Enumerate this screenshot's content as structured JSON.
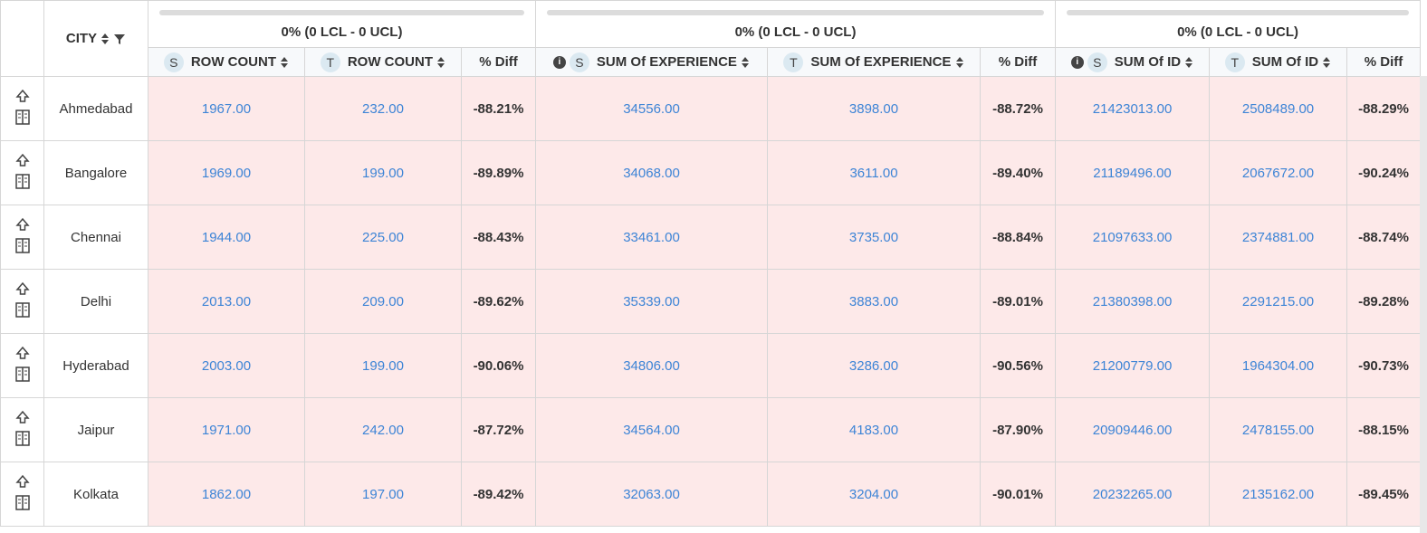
{
  "header": {
    "city": "CITY",
    "groups": [
      "0% (0 LCL - 0 UCL)",
      "0% (0 LCL - 0 UCL)",
      "0% (0 LCL - 0 UCL)"
    ],
    "columns": [
      {
        "badge": "S",
        "label": "ROW COUNT"
      },
      {
        "badge": "T",
        "label": "ROW COUNT"
      },
      {
        "label": "% Diff"
      },
      {
        "info": true,
        "badge": "S",
        "label": "SUM Of EXPERIENCE"
      },
      {
        "badge": "T",
        "label": "SUM Of EXPERIENCE"
      },
      {
        "label": "% Diff"
      },
      {
        "info": true,
        "badge": "S",
        "label": "SUM Of ID"
      },
      {
        "badge": "T",
        "label": "SUM Of ID"
      },
      {
        "label": "% Diff"
      }
    ]
  },
  "table": {
    "rows": [
      [
        "Ahmedabad",
        "1967.00",
        "232.00",
        "-88.21%",
        "34556.00",
        "3898.00",
        "-88.72%",
        "21423013.00",
        "2508489.00",
        "-88.29%"
      ],
      [
        "Bangalore",
        "1969.00",
        "199.00",
        "-89.89%",
        "34068.00",
        "3611.00",
        "-89.40%",
        "21189496.00",
        "2067672.00",
        "-90.24%"
      ],
      [
        "Chennai",
        "1944.00",
        "225.00",
        "-88.43%",
        "33461.00",
        "3735.00",
        "-88.84%",
        "21097633.00",
        "2374881.00",
        "-88.74%"
      ],
      [
        "Delhi",
        "2013.00",
        "209.00",
        "-89.62%",
        "35339.00",
        "3883.00",
        "-89.01%",
        "21380398.00",
        "2291215.00",
        "-89.28%"
      ],
      [
        "Hyderabad",
        "2003.00",
        "199.00",
        "-90.06%",
        "34806.00",
        "3286.00",
        "-90.56%",
        "21200779.00",
        "1964304.00",
        "-90.73%"
      ],
      [
        "Jaipur",
        "1971.00",
        "242.00",
        "-87.72%",
        "34564.00",
        "4183.00",
        "-87.90%",
        "20909446.00",
        "2478155.00",
        "-88.15%"
      ],
      [
        "Kolkata",
        "1862.00",
        "197.00",
        "-89.42%",
        "32063.00",
        "3204.00",
        "-90.01%",
        "20232265.00",
        "2135162.00",
        "-89.45%"
      ]
    ]
  }
}
